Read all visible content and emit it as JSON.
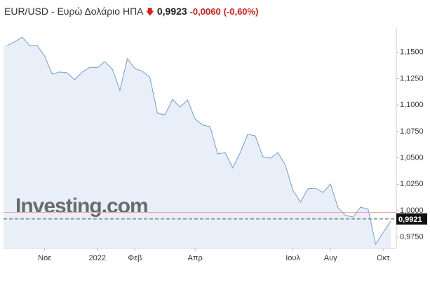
{
  "header": {
    "symbol": "EUR/USD - Ευρώ Δολάριο ΗΠΑ",
    "price": "0,9923",
    "change": "-0,0060",
    "change_percent": "(-0,60%)"
  },
  "chart_data": {
    "type": "area",
    "watermark": "Investing.com",
    "categories": [
      null,
      null,
      null,
      null,
      null,
      "Νοε",
      null,
      null,
      null,
      null,
      null,
      null,
      "2022",
      null,
      null,
      null,
      null,
      "Φεβ",
      null,
      null,
      null,
      null,
      null,
      null,
      null,
      "Απρ",
      null,
      null,
      null,
      null,
      null,
      null,
      null,
      null,
      null,
      null,
      null,
      null,
      "Ιουλ",
      null,
      null,
      null,
      null,
      "Αυγ",
      null,
      null,
      null,
      null,
      null,
      null,
      "Οκτ",
      null
    ],
    "series": [
      {
        "color": "#6f9fd3",
        "values": [
          1.1565,
          1.1598,
          1.1644,
          1.1565,
          1.1565,
          1.1465,
          1.1293,
          1.1313,
          1.1306,
          1.124,
          1.1313,
          1.1359,
          1.1353,
          1.1412,
          1.1339,
          1.114,
          1.1439,
          1.1346,
          1.132,
          1.126,
          1.0922,
          1.0908,
          1.1054,
          1.0981,
          1.1048,
          1.0869,
          1.0809,
          1.0796,
          1.0537,
          1.055,
          1.0404,
          1.055,
          1.0723,
          1.0709,
          1.0511,
          1.0497,
          1.055,
          1.0431,
          1.0192,
          1.008,
          1.0206,
          1.0212,
          1.0172,
          1.0252,
          1.0027,
          0.9954,
          0.994,
          1.0033,
          1.0013,
          0.9682,
          0.9794,
          0.9901
        ]
      }
    ],
    "ylim": [
      0.9642,
      1.173
    ],
    "yticks": [
      {
        "value": 0.975,
        "label": "0,9750"
      },
      {
        "value": 1.0,
        "label": "1,0000"
      },
      {
        "value": 1.025,
        "label": "1,0250"
      },
      {
        "value": 1.05,
        "label": "1,0500"
      },
      {
        "value": 1.075,
        "label": "1,0750"
      },
      {
        "value": 1.1,
        "label": "1,1000"
      },
      {
        "value": 1.125,
        "label": "1,1250"
      },
      {
        "value": 1.15,
        "label": "1,1500"
      }
    ],
    "previous_close": 0.9983,
    "current": {
      "value": 0.9921,
      "label": "0,9921"
    }
  }
}
